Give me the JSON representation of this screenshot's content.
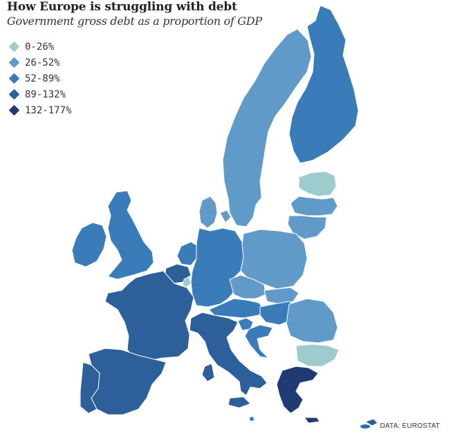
{
  "title": "How Europe is struggling with debt",
  "subtitle": "Government gross debt as a proportion of GDP",
  "colors": {
    "band1": "#9ecbcd",
    "band2": "#5f9ac8",
    "band3": "#3a7bb9",
    "band4": "#2d5f9a",
    "band5": "#1f3b73"
  },
  "legend": [
    {
      "label": "0-26%",
      "color_key": "band1"
    },
    {
      "label": "26-52%",
      "color_key": "band2"
    },
    {
      "label": "52-89%",
      "color_key": "band3"
    },
    {
      "label": "89-132%",
      "color_key": "band4"
    },
    {
      "label": "132-177%",
      "color_key": "band5"
    }
  ],
  "regions": {
    "estonia": "band1",
    "bulgaria": "band1",
    "luxembourg": "band1",
    "sweden": "band2",
    "poland": "band2",
    "romania": "band2",
    "lithuania": "band2",
    "latvia": "band2",
    "denmark": "band2",
    "czech_republic": "band2",
    "slovakia": "band2",
    "finland": "band3",
    "germany": "band3",
    "uk": "band3",
    "netherlands": "band3",
    "austria": "band3",
    "hungary": "band3",
    "slovenia": "band3",
    "croatia": "band3",
    "malta": "band3",
    "ireland": "band3",
    "france": "band4",
    "spain": "band4",
    "belgium": "band4",
    "italy": "band4",
    "portugal": "band4",
    "cyprus": "band4",
    "greece": "band5"
  },
  "credit": "DATA: EUROSTAT"
}
